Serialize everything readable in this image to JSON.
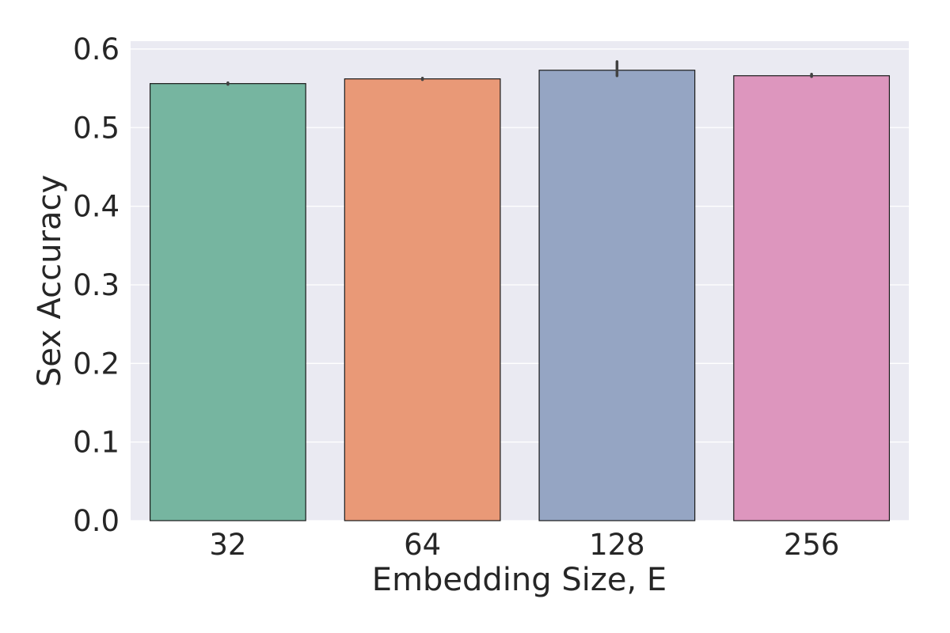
{
  "chart_data": {
    "type": "bar",
    "title": "",
    "xlabel": "Embedding Size, E",
    "ylabel": "Sex Accuracy",
    "categories": [
      "32",
      "64",
      "128",
      "256"
    ],
    "values": [
      0.556,
      0.562,
      0.573,
      0.566
    ],
    "error_bars": [
      [
        0.555,
        0.557
      ],
      [
        0.561,
        0.563
      ],
      [
        0.566,
        0.584
      ],
      [
        0.565,
        0.568
      ]
    ],
    "colors": [
      "#76b5a0",
      "#e99977",
      "#95a5c3",
      "#dd96be"
    ],
    "ylim": [
      0.0,
      0.61
    ],
    "yticks": [
      "0.0",
      "0.1",
      "0.2",
      "0.3",
      "0.4",
      "0.5",
      "0.6"
    ],
    "grid": true,
    "legend": "none"
  }
}
